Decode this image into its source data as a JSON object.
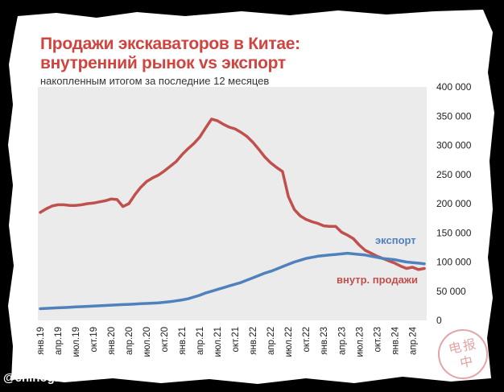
{
  "card": {
    "title_line1": "Продажи экскаваторов в Китае:",
    "title_line2": "внутренний рынок vs экспорт",
    "subtitle": "накопленным итогом за последние 12 месяцев",
    "title_color": "#d04440",
    "watermark": "@chinogram",
    "stamp_text": "电 报 中"
  },
  "chart_data": {
    "type": "line",
    "title": "Продажи экскаваторов в Китае: внутренний рынок vs экспорт",
    "subtitle": "накопленным итогом за последние 12 месяцев",
    "xlabel": "",
    "ylabel": "",
    "ylim": [
      0,
      400000
    ],
    "yticks": [
      0,
      50000,
      100000,
      150000,
      200000,
      250000,
      300000,
      350000,
      400000
    ],
    "ytick_labels": [
      "0",
      "50 000",
      "100 000",
      "150 000",
      "200 000",
      "250 000",
      "300 000",
      "350 000",
      "400 000"
    ],
    "y_axis_side": "right",
    "grid": false,
    "x": [
      "янв.19",
      "фев.19",
      "мар.19",
      "апр.19",
      "май.19",
      "июн.19",
      "июл.19",
      "авг.19",
      "сен.19",
      "окт.19",
      "ноя.19",
      "дек.19",
      "янв.20",
      "фев.20",
      "мар.20",
      "апр.20",
      "май.20",
      "июн.20",
      "июл.20",
      "авг.20",
      "сен.20",
      "окт.20",
      "ноя.20",
      "дек.20",
      "янв.21",
      "фев.21",
      "мар.21",
      "апр.21",
      "май.21",
      "июн.21",
      "июл.21",
      "авг.21",
      "сен.21",
      "окт.21",
      "ноя.21",
      "дек.21",
      "янв.22",
      "фев.22",
      "мар.22",
      "апр.22",
      "май.22",
      "июн.22",
      "июл.22",
      "авг.22",
      "сен.22",
      "окт.22",
      "ноя.22",
      "дек.22",
      "янв.23",
      "фев.23",
      "мар.23",
      "апр.23",
      "май.23",
      "июн.23",
      "июл.23",
      "авг.23",
      "сен.23",
      "окт.23",
      "ноя.23",
      "дек.23",
      "янв.24",
      "фев.24",
      "мар.24",
      "апр.24",
      "май.24",
      "июн.24"
    ],
    "x_tick_labels": [
      "янв.19",
      "апр.19",
      "июл.19",
      "окт.19",
      "янв.20",
      "апр.20",
      "июл.20",
      "окт.20",
      "янв.21",
      "апр.21",
      "июл.21",
      "окт.21",
      "янв.22",
      "апр.22",
      "июл.22",
      "окт.22",
      "янв.23",
      "апр.23",
      "июл.23",
      "окт.23",
      "янв.24",
      "апр.24"
    ],
    "series": [
      {
        "name": "внутр. продажи",
        "color": "#c0504d",
        "values": [
          185000,
          191000,
          196000,
          198000,
          198000,
          197000,
          197000,
          198000,
          200000,
          201000,
          203000,
          205000,
          208000,
          207000,
          195000,
          200000,
          215000,
          228000,
          238000,
          244000,
          249000,
          256000,
          264000,
          272000,
          284000,
          294000,
          303000,
          314000,
          330000,
          345000,
          342000,
          336000,
          331000,
          328000,
          322000,
          315000,
          305000,
          293000,
          280000,
          270000,
          262000,
          255000,
          212000,
          190000,
          179000,
          173000,
          169000,
          166000,
          162000,
          161000,
          161000,
          151000,
          146000,
          140000,
          129000,
          120000,
          115000,
          110000,
          106000,
          102000,
          98000,
          93000,
          89000,
          91000,
          87000,
          89000
        ]
      },
      {
        "name": "экспорт",
        "color": "#4f81bd",
        "values": [
          20000,
          20500,
          21000,
          21500,
          22000,
          22500,
          23000,
          23500,
          24000,
          24500,
          25000,
          25500,
          26000,
          26500,
          27000,
          27500,
          28000,
          28500,
          29000,
          29500,
          30000,
          31000,
          32000,
          33500,
          35000,
          37000,
          40000,
          43000,
          47000,
          50000,
          53000,
          56000,
          59000,
          62000,
          65000,
          69000,
          73000,
          77000,
          81000,
          84000,
          88000,
          92000,
          96000,
          100000,
          103000,
          106000,
          108000,
          110000,
          111000,
          112000,
          113000,
          114000,
          115000,
          114000,
          113000,
          112000,
          110000,
          108000,
          106000,
          105000,
          104000,
          102000,
          100000,
          99000,
          98000,
          97000
        ]
      }
    ]
  }
}
